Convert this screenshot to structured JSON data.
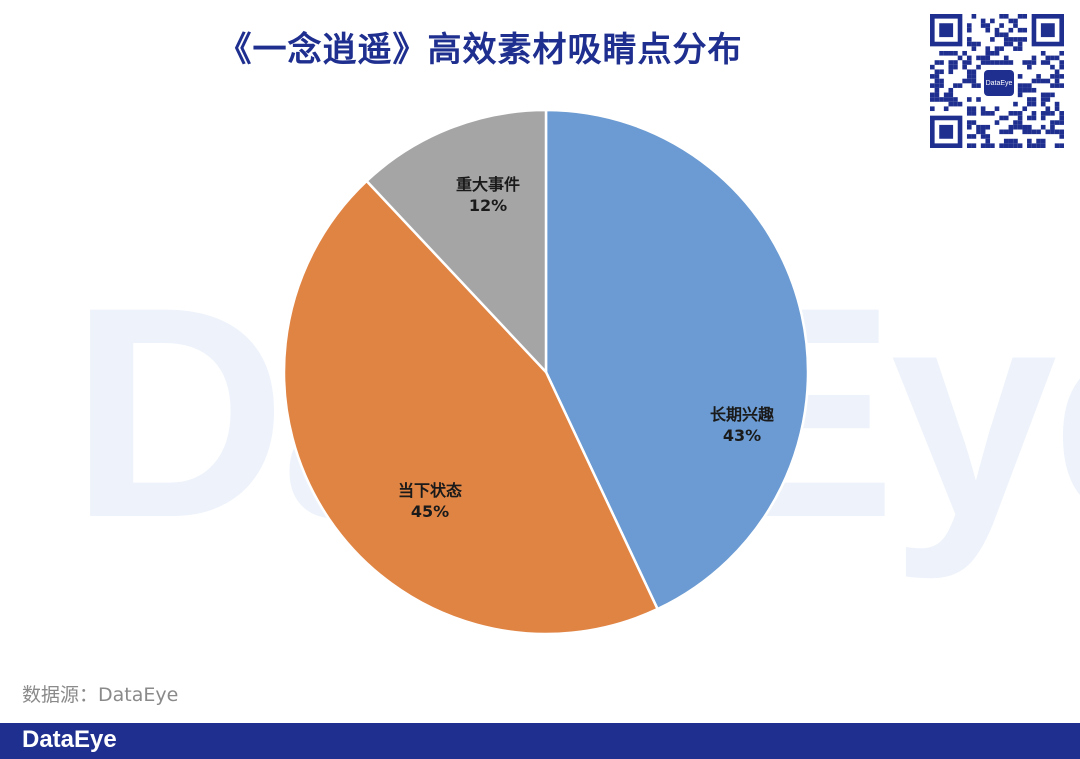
{
  "title": "《一念逍遥》高效素材吸睛点分布",
  "watermark": "DataEye",
  "qr_badge": "DataEye",
  "source": "数据源：DataEye",
  "footer_logo": "DataEye",
  "colors": {
    "title": "#1f2f8f",
    "footer": "#1f2f8f",
    "slice_long_interest": "#6b9bd2",
    "slice_current_state": "#e08444",
    "slice_major_event": "#a5a5a5"
  },
  "chart_data": {
    "type": "pie",
    "title": "《一念逍遥》高效素材吸睛点分布",
    "start_angle_deg": 0,
    "direction": "clockwise",
    "slices": [
      {
        "label": "长期兴趣",
        "value": 43,
        "value_label": "43%",
        "color": "#6b9bd2"
      },
      {
        "label": "当下状态",
        "value": 45,
        "value_label": "45%",
        "color": "#e08444"
      },
      {
        "label": "重大事件",
        "value": 12,
        "value_label": "12%",
        "color": "#a5a5a5"
      }
    ]
  }
}
